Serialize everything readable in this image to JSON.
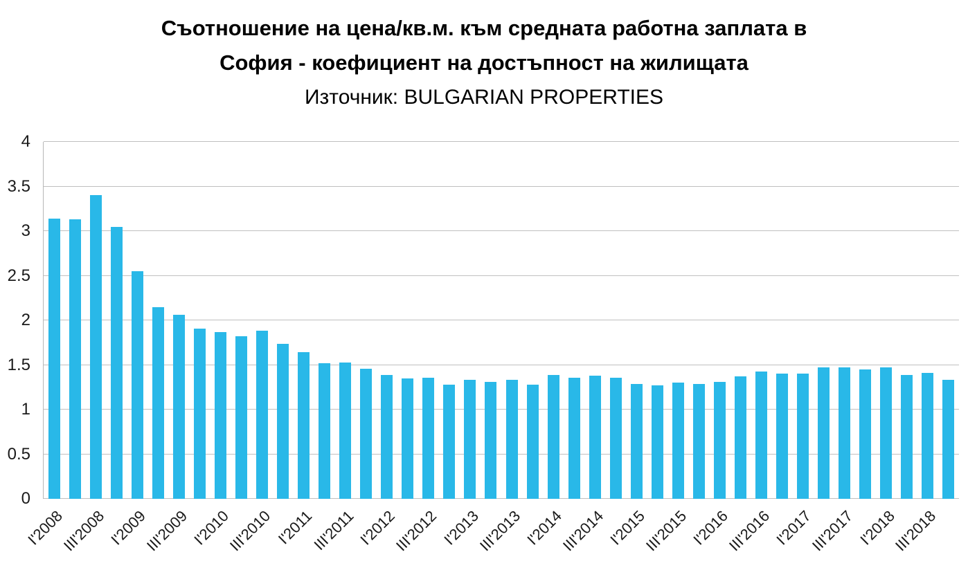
{
  "title": {
    "line1": "Съотношение на цена/кв.м. към средната работна заплата в",
    "line2": "София - коефициент на достъпност на жилищата",
    "source": "Източник: BULGARIAN PROPERTIES"
  },
  "chart_data": {
    "type": "bar",
    "title": "Съотношение на цена/кв.м. към средната работна заплата в София - коефициент на достъпност на жилищата",
    "subtitle": "Източник: BULGARIAN PROPERTIES",
    "bar_color": "#29B8E8",
    "gridline_color": "#BFBFBF",
    "axis_line_color": "#B7B7B7",
    "grid": "on",
    "legend": "none",
    "ylim": [
      0,
      4
    ],
    "yticks": [
      0,
      0.5,
      1,
      1.5,
      2,
      2.5,
      3,
      3.5,
      4
    ],
    "ytick_labels": [
      "0",
      "0.5",
      "1",
      "1.5",
      "2",
      "2.5",
      "3",
      "3.5",
      "4"
    ],
    "xlabel": "",
    "ylabel": "",
    "label_every": 2,
    "categories": [
      "I'2008",
      "II'2008",
      "III'2008",
      "IV'2008",
      "I'2009",
      "II'2009",
      "III'2009",
      "IV'2009",
      "I'2010",
      "II'2010",
      "III'2010",
      "IV'2010",
      "I'2011",
      "II'2011",
      "III'2011",
      "IV'2011",
      "I'2012",
      "II'2012",
      "III'2012",
      "IV'2012",
      "I'2013",
      "II'2013",
      "III'2013",
      "IV'2013",
      "I'2014",
      "II'2014",
      "III'2014",
      "IV'2014",
      "I'2015",
      "II'2015",
      "III'2015",
      "IV'2015",
      "I'2016",
      "II'2016",
      "III'2016",
      "IV'2016",
      "I'2017",
      "II'2017",
      "III'2017",
      "IV'2017",
      "I'2018",
      "II'2018",
      "III'2018",
      "IV'2018"
    ],
    "values": [
      3.14,
      3.13,
      3.4,
      3.05,
      2.55,
      2.15,
      2.06,
      1.91,
      1.87,
      1.82,
      1.88,
      1.74,
      1.64,
      1.52,
      1.53,
      1.46,
      1.39,
      1.35,
      1.36,
      1.28,
      1.33,
      1.31,
      1.33,
      1.28,
      1.39,
      1.36,
      1.38,
      1.36,
      1.29,
      1.27,
      1.3,
      1.29,
      1.31,
      1.37,
      1.43,
      1.4,
      1.4,
      1.47,
      1.47,
      1.45,
      1.47,
      1.39,
      1.41,
      1.33
    ]
  }
}
